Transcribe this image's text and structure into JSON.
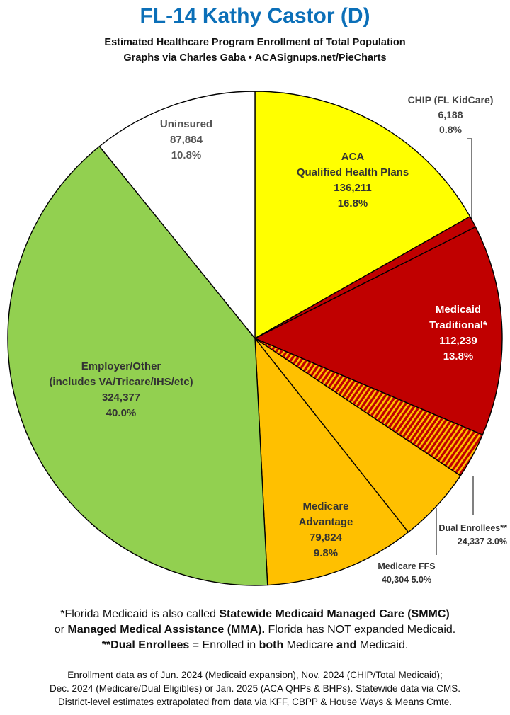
{
  "title": "FL-14 Kathy Castor (D)",
  "subtitle_line1": "Estimated Healthcare Program Enrollment of Total Population",
  "subtitle_line2": "Graphs via Charles Gaba   •   ACASignups.net/PieCharts",
  "chart_data": {
    "type": "pie",
    "start_angle_deg": 0,
    "direction": "clockwise",
    "slices": [
      {
        "name": "ACA Qualified Health Plans",
        "lines": [
          "ACA",
          "Qualified Health Plans"
        ],
        "value": 136211,
        "value_label": "136,211",
        "percent_label": "16.8%",
        "color": "#ffff00",
        "pattern": "none",
        "label_color": "#333333"
      },
      {
        "name": "CHIP (FL KidCare)",
        "lines": [
          "CHIP (FL KidCare)"
        ],
        "value": 6188,
        "value_label": "6,188",
        "percent_label": "0.8%",
        "color": "#c00000",
        "pattern": "none",
        "label_color": "#444444",
        "outside": true
      },
      {
        "name": "Medicaid Traditional*",
        "lines": [
          "Medicaid",
          "Traditional*"
        ],
        "value": 112239,
        "value_label": "112,239",
        "percent_label": "13.8%",
        "color": "#c00000",
        "pattern": "none",
        "label_color": "#ffffff"
      },
      {
        "name": "Dual Enrollees**",
        "lines": [
          "Dual Enrollees**"
        ],
        "value": 24337,
        "value_label": "24,337",
        "percent_label": "3.0%",
        "color": "#c00000",
        "pattern": "stripes",
        "stripe_color": "#ffc000",
        "label_color": "#333333",
        "outside": true
      },
      {
        "name": "Medicare FFS",
        "lines": [
          "Medicare FFS"
        ],
        "value": 40304,
        "value_label": "40,304",
        "percent_label": "5.0%",
        "color": "#ffc000",
        "pattern": "none",
        "label_color": "#333333",
        "outside": true
      },
      {
        "name": "Medicare Advantage",
        "lines": [
          "Medicare",
          "Advantage"
        ],
        "value": 79824,
        "value_label": "79,824",
        "percent_label": "9.8%",
        "color": "#ffc000",
        "pattern": "none",
        "label_color": "#333333"
      },
      {
        "name": "Employer/Other (includes VA/Tricare/IHS/etc)",
        "lines": [
          "Employer/Other",
          "(includes VA/Tricare/IHS/etc)"
        ],
        "value": 324377,
        "value_label": "324,377",
        "percent_label": "40.0%",
        "color": "#92d050",
        "pattern": "none",
        "label_color": "#333333"
      },
      {
        "name": "Uninsured",
        "lines": [
          "Uninsured"
        ],
        "value": 87884,
        "value_label": "87,884",
        "percent_label": "10.8%",
        "color": "#ffffff",
        "pattern": "none",
        "label_color": "#555555"
      }
    ]
  },
  "notes": {
    "line1_pre": "*Florida Medicaid is also called ",
    "line1_bold": "Statewide Medicaid Managed Care (SMMC)",
    "line2_pre": "or ",
    "line2_bold": "Managed Medical Assistance (MMA).",
    "line2_post": " Florida has NOT expanded Medicaid.",
    "line3_bold1": "**Dual Enrollees",
    "line3_mid": " = Enrolled in ",
    "line3_bold2": "both",
    "line3_mid2": " Medicare ",
    "line3_bold3": "and",
    "line3_post": " Medicaid."
  },
  "footer": {
    "line1": "Enrollment data as of Jun. 2024 (Medicaid expansion), Nov. 2024 (CHIP/Total Medicaid);",
    "line2": "Dec. 2024 (Medicare/Dual Eligibles) or Jan. 2025 (ACA QHPs & BHPs). Statewide data via CMS.",
    "line3": "District-level estimates extrapolated from data via KFF, CBPP & House Ways & Means Cmte."
  }
}
